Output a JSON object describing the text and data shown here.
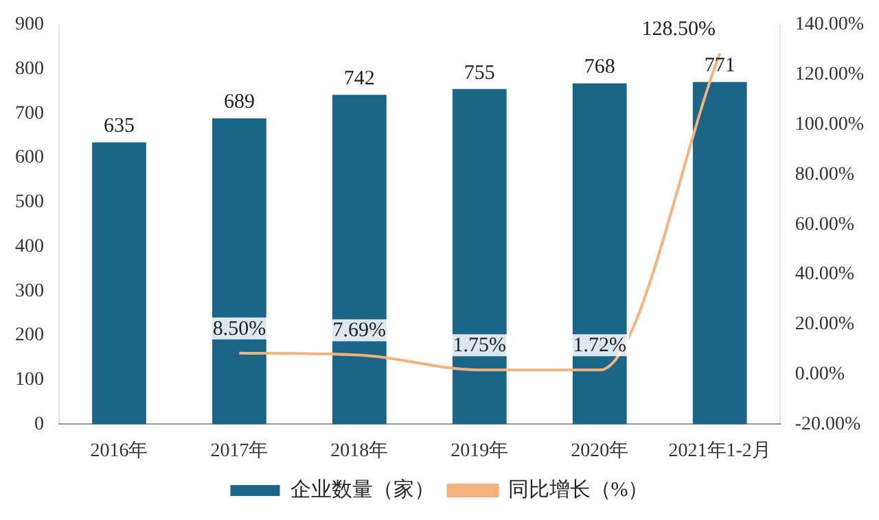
{
  "chart_data": {
    "type": "bar",
    "categories": [
      "2016年",
      "2017年",
      "2018年",
      "2019年",
      "2020年",
      "2021年1-2月"
    ],
    "series": [
      {
        "name": "企业数量（家）",
        "color": "#1a6588",
        "values": [
          635,
          689,
          742,
          755,
          768,
          771
        ],
        "value_labels": [
          "635",
          "689",
          "742",
          "755",
          "768",
          "771"
        ]
      },
      {
        "name": "同比增长（%）",
        "type": "line",
        "axis": "y2",
        "color": "#f5b27a",
        "values": [
          null,
          8.5,
          7.69,
          1.75,
          1.72,
          128.5
        ],
        "value_labels": [
          null,
          "8.50%",
          "7.69%",
          "1.75%",
          "1.72%",
          "128.50%"
        ]
      }
    ],
    "ylim": [
      0,
      900
    ],
    "yticks": [
      0,
      100,
      200,
      300,
      400,
      500,
      600,
      700,
      800,
      900
    ],
    "y2lim": [
      -20,
      140
    ],
    "y2ticks": [
      {
        "value": -20,
        "label": "-20.00%"
      },
      {
        "value": 0,
        "label": "0.00%"
      },
      {
        "value": 20,
        "label": "20.00%"
      },
      {
        "value": 40,
        "label": "40.00%"
      },
      {
        "value": 60,
        "label": "60.00%"
      },
      {
        "value": 80,
        "label": "80.00%"
      },
      {
        "value": 100,
        "label": "100.00%"
      },
      {
        "value": 120,
        "label": "120.00%"
      },
      {
        "value": 140,
        "label": "140.00%"
      }
    ],
    "grid": false,
    "legend": "bottom",
    "marker": "none"
  }
}
